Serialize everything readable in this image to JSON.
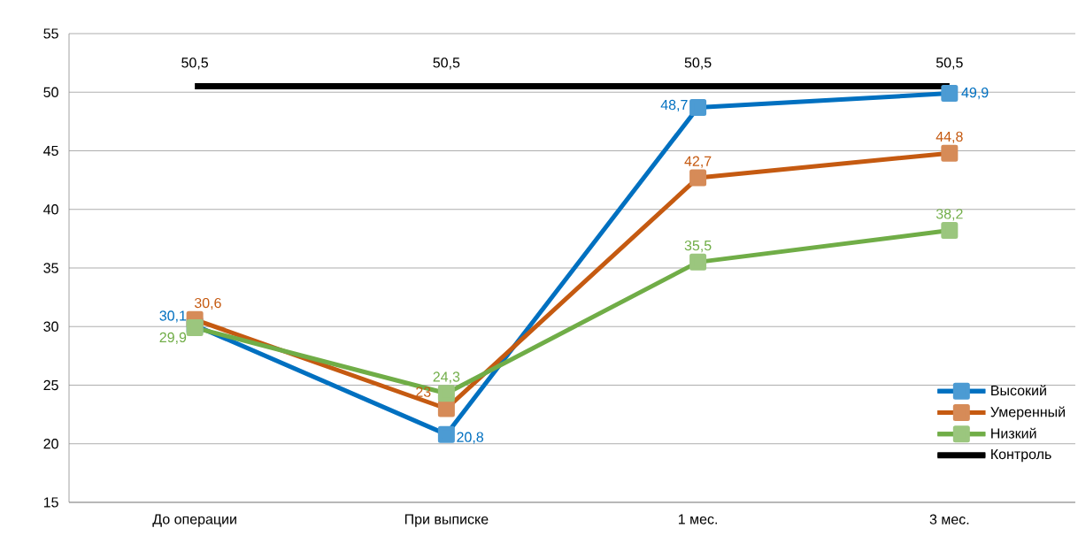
{
  "chart_data": {
    "type": "line",
    "categories": [
      "До операции",
      "При выписке",
      "1 мес.",
      "3 мес."
    ],
    "ylim": [
      15,
      55
    ],
    "yticks": [
      15,
      20,
      25,
      30,
      35,
      40,
      45,
      50,
      55
    ],
    "grid": "y",
    "legend": "bottom right",
    "marker": "square",
    "line_style": "solid",
    "series": [
      {
        "name": "Высокий",
        "color": "#0070c0",
        "values": [
          30.1,
          20.8,
          48.7,
          49.9
        ],
        "value_labels": [
          "30,1",
          "20,8",
          "48,7",
          "49,9"
        ]
      },
      {
        "name": "Умеренный",
        "color": "#c55a11",
        "values": [
          30.6,
          23,
          42.7,
          44.8
        ],
        "value_labels": [
          "30,6",
          "23",
          "42,7",
          "44,8"
        ]
      },
      {
        "name": "Низкий",
        "color": "#70ad47",
        "values": [
          29.9,
          24.3,
          35.5,
          38.2
        ],
        "value_labels": [
          "29,9",
          "24,3",
          "35,5",
          "38,2"
        ]
      },
      {
        "name": "Контроль",
        "color": "#000000",
        "marker": "none",
        "values": [
          50.5,
          50.5,
          50.5,
          50.5
        ],
        "value_labels": [
          "50,5",
          "50,5",
          "50,5",
          "50,5"
        ]
      }
    ]
  }
}
